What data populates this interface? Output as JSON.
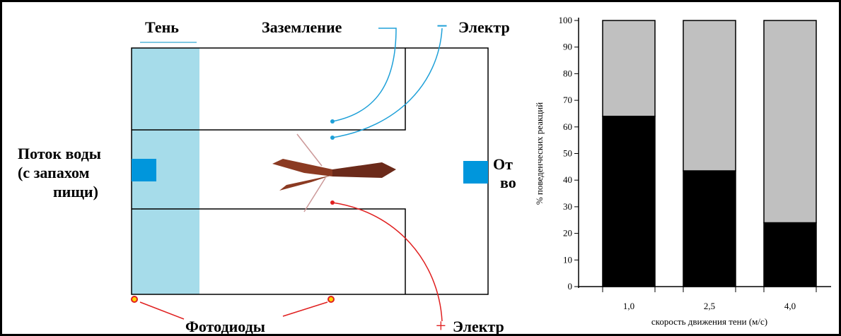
{
  "diagram": {
    "shadow": "Тень",
    "ground": "Заземление",
    "minus": "−",
    "electrode_top": "Электр",
    "plus": "+",
    "electrode_bottom": "Электр",
    "inflow": [
      "Поток воды",
      "(с запахом",
      "пищи)"
    ],
    "outflow": [
      "От",
      "во"
    ],
    "photodiodes": "Фотодиоды"
  },
  "chart_data": {
    "type": "stacked-bar",
    "categories": [
      "1,0",
      "2,5",
      "4,0"
    ],
    "series": [
      {
        "color": "#000000",
        "values": [
          64,
          43.5,
          24
        ]
      },
      {
        "color": "#c0c0c0",
        "values": [
          36,
          56.5,
          76
        ]
      }
    ],
    "ylim": [
      0,
      100
    ],
    "yticks": [
      0,
      10,
      20,
      30,
      40,
      50,
      60,
      70,
      80,
      90,
      100
    ],
    "ylabel": "% поведенческих реакций",
    "xlabel": "скорость движения тени (м/с)"
  }
}
